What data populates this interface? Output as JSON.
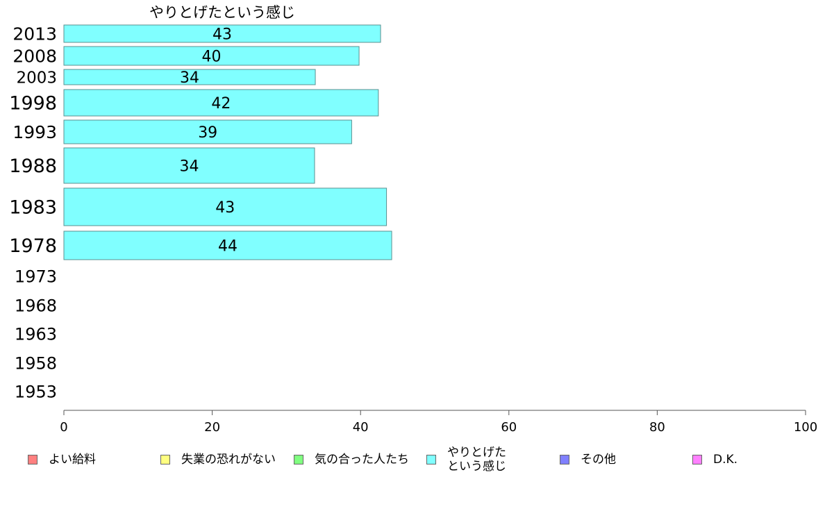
{
  "chart_data": {
    "type": "bar",
    "orientation": "horizontal",
    "title": "やりとげたという感じ",
    "categories": [
      "2013",
      "2008",
      "2003",
      "1998",
      "1993",
      "1988",
      "1983",
      "1978",
      "1973",
      "1968",
      "1963",
      "1958",
      "1953"
    ],
    "series": [
      {
        "name": "やりとげたという感じ",
        "color": "#80ffff",
        "values": [
          43,
          40,
          34,
          42,
          39,
          34,
          43,
          44,
          null,
          null,
          null,
          null,
          null
        ],
        "value_fractions": [
          42.7,
          39.8,
          33.9,
          42.4,
          38.8,
          33.8,
          43.5,
          44.2,
          null,
          null,
          null,
          null,
          null
        ]
      }
    ],
    "xlim": [
      0,
      100
    ],
    "xticks": [
      "0",
      "20",
      "40",
      "60",
      "80",
      "100"
    ],
    "legend": {
      "placement": "bottom",
      "items": [
        {
          "label": "よい給料",
          "color": "#ff8080"
        },
        {
          "label": "失業の恐れがない",
          "color": "#ffff80"
        },
        {
          "label": "気の合った人たち",
          "color": "#80ff80"
        },
        {
          "label": "やりとげた\nという感じ",
          "color": "#80ffff"
        },
        {
          "label": "その他",
          "color": "#8080ff"
        },
        {
          "label": "D.K.",
          "color": "#ff80ff"
        }
      ]
    }
  }
}
